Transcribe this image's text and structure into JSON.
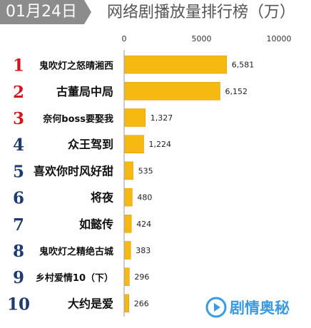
{
  "date": "01月24日",
  "title": "网络剧播放量排行榜（万）",
  "watermark": "剧情奥秘",
  "colors": {
    "bar": "#f5b911",
    "rank_top3": "#d7141a",
    "rank_rest": "#1f3b6e",
    "badge": "#8c8c8c",
    "watermark": "#3a9be0"
  },
  "chart_data": {
    "type": "bar",
    "orientation": "horizontal",
    "title": "网络剧播放量排行榜（万）",
    "xlim": [
      0,
      10000
    ],
    "x_ticks": [
      0,
      5000,
      10000
    ],
    "x_tick_labels": [
      "0",
      "5000",
      "10000"
    ],
    "ranks": [
      "1",
      "2",
      "3",
      "4",
      "5",
      "6",
      "7",
      "8",
      "9",
      "10"
    ],
    "categories": [
      "鬼吹灯之怒晴湘西",
      "古董局中局",
      "奈何boss要娶我",
      "众王驾到",
      "喜欢你时风好甜",
      "将夜",
      "如懿传",
      "鬼吹灯之精绝古城",
      "乡村爱情10（下）",
      "大约是爱"
    ],
    "values": [
      6581,
      6152,
      1327,
      1224,
      535,
      480,
      424,
      383,
      296,
      266
    ],
    "value_labels": [
      "6,581",
      "6,152",
      "1,327",
      "1,224",
      "535",
      "480",
      "424",
      "383",
      "296",
      "266"
    ],
    "grid": false,
    "legend": false
  }
}
